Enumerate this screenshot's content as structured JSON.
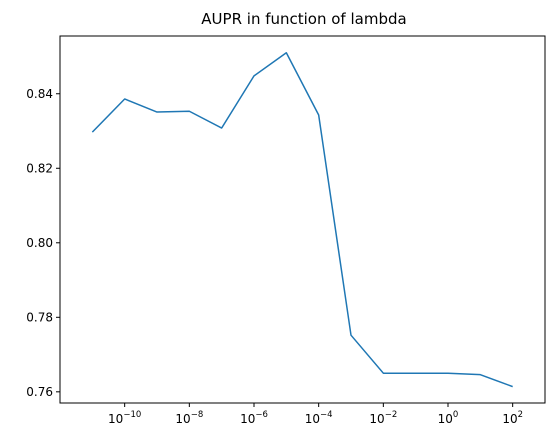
{
  "chart_data": {
    "type": "line",
    "title": "AUPR in function of lambda",
    "xlabel": "",
    "ylabel": "",
    "x_scale": "log",
    "xlim": [
      1e-12,
      1000.0
    ],
    "ylim": [
      0.757,
      0.8555
    ],
    "x_ticks": [
      {
        "value": 1e-10,
        "base": "10",
        "exp": "−10"
      },
      {
        "value": 1e-08,
        "base": "10",
        "exp": "−8"
      },
      {
        "value": 1e-06,
        "base": "10",
        "exp": "−6"
      },
      {
        "value": 0.0001,
        "base": "10",
        "exp": "−4"
      },
      {
        "value": 0.01,
        "base": "10",
        "exp": "−2"
      },
      {
        "value": 1,
        "base": "10",
        "exp": "0"
      },
      {
        "value": 100,
        "base": "10",
        "exp": "2"
      }
    ],
    "y_ticks": [
      {
        "value": 0.76,
        "label": "0.76"
      },
      {
        "value": 0.78,
        "label": "0.78"
      },
      {
        "value": 0.8,
        "label": "0.80"
      },
      {
        "value": 0.82,
        "label": "0.82"
      },
      {
        "value": 0.84,
        "label": "0.84"
      }
    ],
    "grid": false,
    "series": [
      {
        "color": "#1f77b4",
        "x": [
          1e-11,
          1e-10,
          1e-09,
          1e-08,
          1e-07,
          1e-06,
          1e-05,
          0.0001,
          0.001,
          0.01,
          0.1,
          1,
          10,
          100
        ],
        "y": [
          0.8297,
          0.8386,
          0.8351,
          0.8353,
          0.8308,
          0.8448,
          0.851,
          0.8343,
          0.7752,
          0.765,
          0.765,
          0.765,
          0.7646,
          0.7614
        ]
      }
    ]
  }
}
